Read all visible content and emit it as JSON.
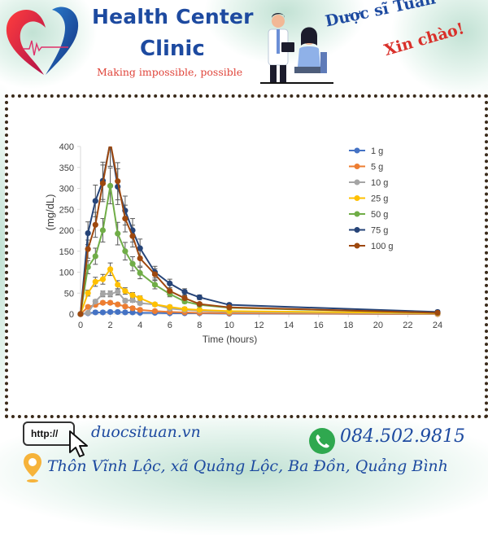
{
  "header": {
    "brand_line1": "Health Center",
    "brand_line2": "Clinic",
    "tagline": "Making impossible, possible",
    "greeting_name": "Dược sĩ Tuấn",
    "greeting_hello": "Xin chào!"
  },
  "footer": {
    "url_label": "http://",
    "website": "duocsituan.vn",
    "phone": "084.502.9815",
    "address": "Thôn Vĩnh Lộc, xã Quảng Lộc, Ba Đồn, Quảng Bình"
  },
  "icons": {
    "logo": "heart-pulse-logo-icon",
    "browser": "browser-url-icon",
    "cursor": "mouse-cursor-icon",
    "phone": "phone-icon",
    "location": "location-pin-icon"
  },
  "chart_data": {
    "type": "line",
    "title": "",
    "xlabel": "Time (hours)",
    "ylabel": "(mg/dL)",
    "xlim": [
      0,
      24
    ],
    "ylim": [
      0,
      400
    ],
    "xticks": [
      0,
      2,
      4,
      6,
      8,
      10,
      12,
      14,
      16,
      18,
      20,
      22,
      24
    ],
    "yticks": [
      0,
      50,
      100,
      150,
      200,
      250,
      300,
      350,
      400
    ],
    "grid": false,
    "legend_position": "upper right",
    "x": [
      0,
      0.5,
      1,
      1.5,
      2,
      2.5,
      3,
      3.5,
      4,
      5,
      6,
      7,
      8,
      10,
      24
    ],
    "series": [
      {
        "name": "1 g",
        "color": "#4472c4",
        "values": [
          0,
          2,
          4,
          4,
          5,
          5,
          4,
          4,
          3,
          3,
          2,
          2,
          2,
          1,
          0
        ]
      },
      {
        "name": "5 g",
        "color": "#ed7d31",
        "values": [
          0,
          17,
          22,
          27,
          27,
          23,
          18,
          14,
          10,
          7,
          5,
          4,
          3,
          2,
          0
        ]
      },
      {
        "name": "10 g",
        "color": "#a5a5a5",
        "values": [
          0,
          3,
          30,
          48,
          48,
          53,
          32,
          33,
          26,
          23,
          13,
          10,
          8,
          5,
          1
        ]
      },
      {
        "name": "25 g",
        "color": "#ffc000",
        "values": [
          0,
          50,
          77,
          83,
          107,
          70,
          55,
          45,
          38,
          23,
          17,
          12,
          10,
          7,
          2
        ]
      },
      {
        "name": "50 g",
        "color": "#70ad47",
        "values": [
          0,
          112,
          138,
          200,
          306,
          192,
          150,
          120,
          98,
          70,
          48,
          30,
          22,
          15,
          3
        ]
      },
      {
        "name": "75 g",
        "color": "#264478",
        "values": [
          0,
          193,
          270,
          318,
          410,
          304,
          247,
          200,
          157,
          100,
          73,
          53,
          40,
          22,
          5
        ]
      },
      {
        "name": "100 g",
        "color": "#9e480e",
        "values": [
          0,
          155,
          213,
          312,
          410,
          317,
          228,
          186,
          133,
          95,
          55,
          38,
          24,
          16,
          3
        ]
      }
    ]
  }
}
